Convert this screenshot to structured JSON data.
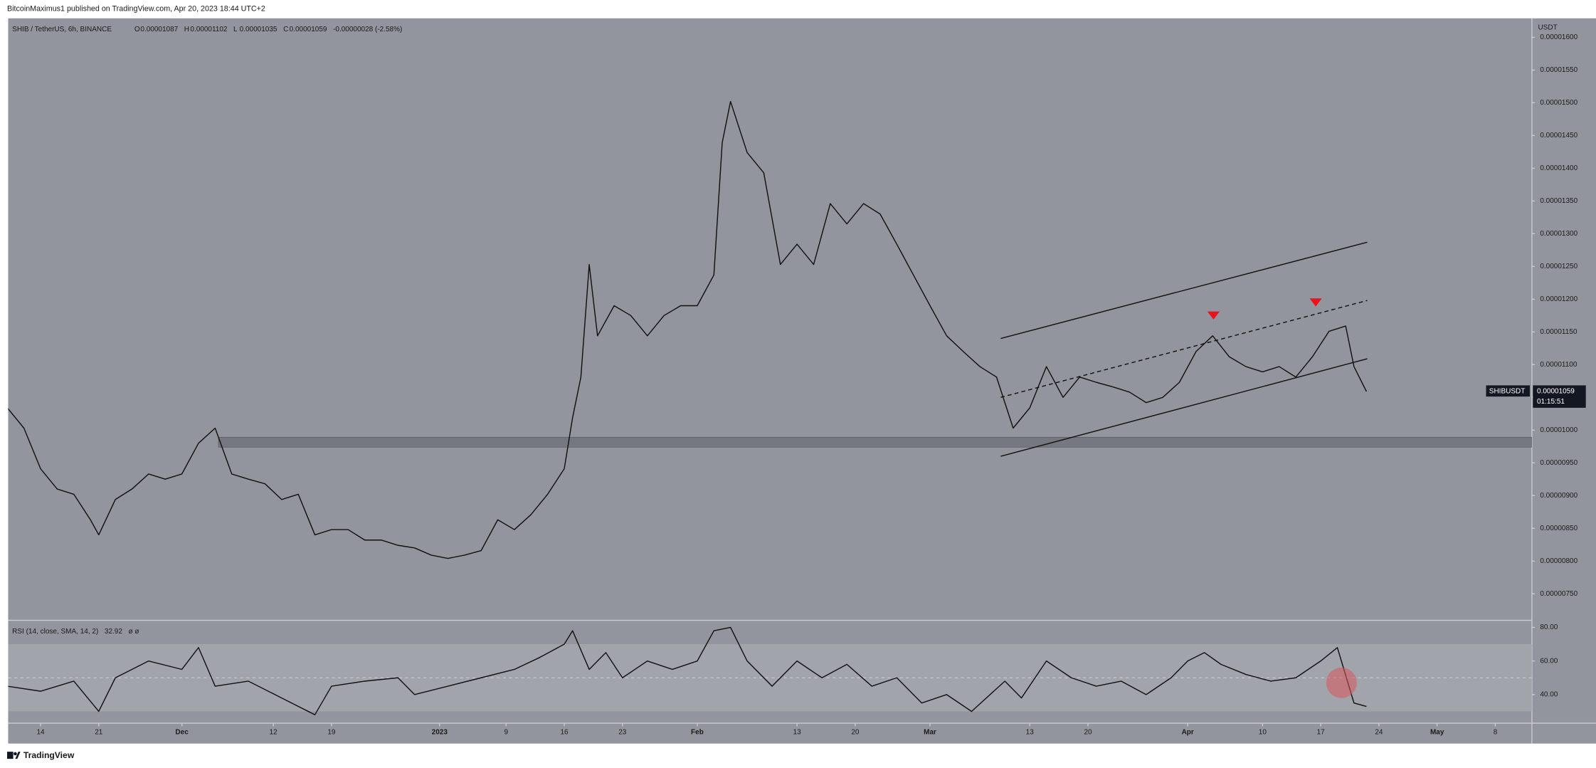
{
  "header": {
    "publisher": "BitcoinMaximus1 published on TradingView.com, Apr 20, 2023 18:44 UTC+2",
    "symbol": "SHIB / TetherUS, 6h, BINANCE",
    "ohlc": [
      {
        "label": "O",
        "value": "0.00001087"
      },
      {
        "label": "H",
        "value": "0.00001102"
      },
      {
        "label": "L",
        "value": "0.00001035"
      },
      {
        "label": "C",
        "value": "0.00001059"
      }
    ],
    "change": "-0.00000028 (-2.58%)",
    "currency": "USDT"
  },
  "price_tag": {
    "symbol": "SHIBUSDT",
    "price": "0.00001059",
    "countdown": "01:15:51"
  },
  "footer": {
    "brand": "TradingView"
  },
  "chart_data": [
    {
      "type": "line",
      "color": "#111111",
      "x": [
        -4,
        -2,
        0,
        2,
        4,
        6,
        7,
        9,
        11,
        13,
        15,
        17,
        19,
        21,
        23,
        25,
        27,
        29,
        31,
        33,
        35,
        37,
        39,
        41,
        43,
        45,
        47,
        49,
        51,
        53,
        55,
        57,
        59,
        61,
        63,
        64,
        65,
        66,
        67,
        69,
        71,
        73,
        75,
        77,
        79,
        81,
        82,
        83,
        85,
        87,
        89,
        91,
        93,
        95,
        97,
        99,
        101,
        103,
        105,
        107,
        109,
        111,
        113,
        115,
        117,
        119,
        121,
        123,
        125,
        127,
        129,
        131,
        133,
        135,
        137,
        139,
        141,
        143,
        145,
        147,
        149,
        151,
        153,
        155,
        157,
        158,
        159.5
      ],
      "values": [
        1.034e-05,
        1.003e-05,
        9.41e-06,
        9.1e-06,
        9.02e-06,
        8.63e-06,
        8.4e-06,
        8.94e-06,
        9.1e-06,
        9.33e-06,
        9.25e-06,
        9.33e-06,
        9.8e-06,
        1.003e-05,
        9.33e-06,
        9.25e-06,
        9.18e-06,
        8.94e-06,
        9.02e-06,
        8.4e-06,
        8.48e-06,
        8.48e-06,
        8.32e-06,
        8.32e-06,
        8.24e-06,
        8.2e-06,
        8.09e-06,
        8.04e-06,
        8.09e-06,
        8.16e-06,
        8.63e-06,
        8.48e-06,
        8.71e-06,
        9.02e-06,
        9.41e-06,
        1.019e-05,
        1.081e-05,
        1.253e-05,
        1.144e-05,
        1.19e-05,
        1.175e-05,
        1.144e-05,
        1.175e-05,
        1.19e-05,
        1.19e-05,
        1.237e-05,
        1.439e-05,
        1.502e-05,
        1.424e-05,
        1.393e-05,
        1.253e-05,
        1.284e-05,
        1.253e-05,
        1.346e-05,
        1.315e-05,
        1.346e-05,
        1.33e-05,
        1.284e-05,
        1.237e-05,
        1.19e-05,
        1.144e-05,
        1.12e-05,
        1.097e-05,
        1.081e-05,
        1.003e-05,
        1.034e-05,
        1.097e-05,
        1.05e-05,
        1.081e-05,
        1.073e-05,
        1.066e-05,
        1.058e-05,
        1.042e-05,
        1.05e-05,
        1.073e-05,
        1.12e-05,
        1.144e-05,
        1.112e-05,
        1.097e-05,
        1.089e-05,
        1.097e-05,
        1.081e-05,
        1.112e-05,
        1.151e-05,
        1.159e-05,
        1.097e-05,
        1.059e-05
      ],
      "xlim": [
        -3.9,
        179.4
      ],
      "ylim": [
        7.11e-06,
        1.629e-05
      ],
      "yticks": [
        {
          "value": 7.5e-06,
          "label": "0.00000750"
        },
        {
          "value": 8e-06,
          "label": "0.00000800"
        },
        {
          "value": 8.5e-06,
          "label": "0.00000850"
        },
        {
          "value": 9e-06,
          "label": "0.00000900"
        },
        {
          "value": 9.5e-06,
          "label": "0.00000950"
        },
        {
          "value": 1e-05,
          "label": "0.00001000"
        },
        {
          "value": 1.05e-05,
          "label": "0.00001050"
        },
        {
          "value": 1.1e-05,
          "label": "0.00001100"
        },
        {
          "value": 1.15e-05,
          "label": "0.00001150"
        },
        {
          "value": 1.2e-05,
          "label": "0.00001200"
        },
        {
          "value": 1.25e-05,
          "label": "0.00001250"
        },
        {
          "value": 1.3e-05,
          "label": "0.00001300"
        },
        {
          "value": 1.35e-05,
          "label": "0.00001350"
        },
        {
          "value": 1.4e-05,
          "label": "0.00001400"
        },
        {
          "value": 1.45e-05,
          "label": "0.00001450"
        },
        {
          "value": 1.5e-05,
          "label": "0.00001500"
        },
        {
          "value": 1.55e-05,
          "label": "0.00001550"
        },
        {
          "value": 1.6e-05,
          "label": "0.00001600"
        }
      ],
      "xticks": [
        {
          "value": 0,
          "label": "14"
        },
        {
          "value": 7,
          "label": "21"
        },
        {
          "value": 17,
          "label": "Dec"
        },
        {
          "value": 28,
          "label": "12"
        },
        {
          "value": 35,
          "label": "19"
        },
        {
          "value": 48,
          "label": "2023"
        },
        {
          "value": 56,
          "label": "9"
        },
        {
          "value": 63,
          "label": "16"
        },
        {
          "value": 70,
          "label": "23"
        },
        {
          "value": 79,
          "label": "Feb"
        },
        {
          "value": 91,
          "label": "13"
        },
        {
          "value": 98,
          "label": "20"
        },
        {
          "value": 107,
          "label": "Mar"
        },
        {
          "value": 119,
          "label": "13"
        },
        {
          "value": 126,
          "label": "20"
        },
        {
          "value": 138,
          "label": "Apr"
        },
        {
          "value": 147,
          "label": "10"
        },
        {
          "value": 154,
          "label": "17"
        },
        {
          "value": 161,
          "label": "24"
        },
        {
          "value": 168,
          "label": "May"
        },
        {
          "value": 175,
          "label": "8"
        }
      ],
      "zone": {
        "x": [
          21.4,
          179.4
        ],
        "y": [
          9.74e-06,
          9.89e-06
        ],
        "color": "#6f7179"
      },
      "trendlines": [
        {
          "x": [
            115.5,
            159.6
          ],
          "y": [
            9.6e-06,
            1.109e-05
          ],
          "dashed": false
        },
        {
          "x": [
            115.5,
            159.6
          ],
          "y": [
            1.14e-05,
            1.287e-05
          ],
          "dashed": false
        },
        {
          "x": [
            115.5,
            159.6
          ],
          "y": [
            1.05e-05,
            1.198e-05
          ],
          "dashed": true
        }
      ],
      "markers": {
        "x": [
          141.1,
          153.4
        ],
        "y": [
          1.175e-05,
          1.195e-05
        ],
        "color": "#e8141c"
      }
    },
    {
      "type": "line",
      "title": "RSI (14, close, SMA, 14, 2)",
      "last": 32.92,
      "suffix": "ø ø",
      "color": "#111111",
      "x": [
        -4,
        0,
        4,
        7,
        9,
        13,
        17,
        19,
        21,
        25,
        29,
        33,
        35,
        39,
        43,
        45,
        49,
        53,
        57,
        60,
        63,
        64,
        66,
        68,
        70,
        73,
        76,
        79,
        81,
        83,
        85,
        88,
        91,
        94,
        97,
        100,
        103,
        106,
        109,
        112,
        116,
        118,
        121,
        124,
        127,
        130,
        133,
        136,
        138,
        140,
        142,
        145,
        148,
        151,
        154,
        156,
        158,
        159.5
      ],
      "values": [
        45,
        42,
        48,
        30,
        50,
        60,
        55,
        68,
        45,
        48,
        38,
        28,
        45,
        48,
        50,
        40,
        45,
        50,
        55,
        62,
        70,
        78,
        55,
        65,
        50,
        60,
        55,
        60,
        78,
        80,
        60,
        45,
        60,
        50,
        58,
        45,
        50,
        35,
        40,
        30,
        48,
        38,
        60,
        50,
        45,
        48,
        40,
        50,
        60,
        65,
        58,
        52,
        48,
        50,
        60,
        68,
        35,
        32.92
      ],
      "xlim": [
        -3.9,
        179.4
      ],
      "ylim": [
        24.2,
        83.6
      ],
      "yticks": [
        {
          "value": 80,
          "label": "80.00"
        },
        {
          "value": 60,
          "label": "60.00"
        },
        {
          "value": 40,
          "label": "40.00"
        }
      ],
      "band": [
        30,
        70
      ],
      "midline": 50,
      "highlight": {
        "x": 156.5,
        "y": 47,
        "color": "#d9575b"
      }
    }
  ]
}
